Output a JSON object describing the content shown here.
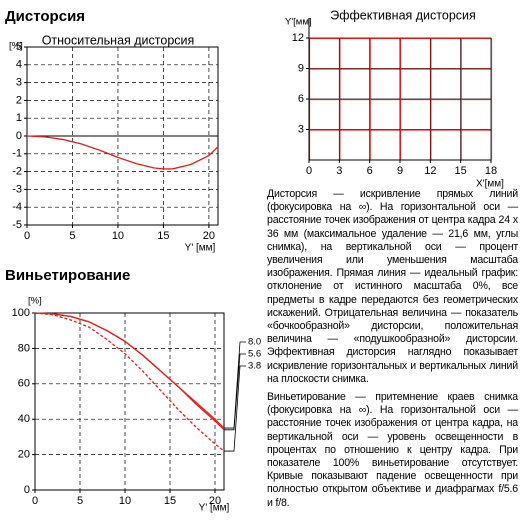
{
  "headings": [
    "Дисторсия",
    "Виньетирование"
  ],
  "chart_data": [
    {
      "type": "line",
      "title": "Относительная дисторсия",
      "y_label": "[%]",
      "x_label": "Y' [мм]",
      "x": [
        0,
        2,
        4,
        6,
        8,
        10,
        12,
        14,
        15,
        16,
        18,
        20,
        21
      ],
      "values": [
        0,
        -0.05,
        -0.2,
        -0.45,
        -0.8,
        -1.2,
        -1.55,
        -1.8,
        -1.85,
        -1.85,
        -1.6,
        -1.1,
        -0.6
      ],
      "color": "#e02020",
      "xlim": [
        0,
        21
      ],
      "ylim": [
        -5,
        5
      ],
      "xticks": [
        0,
        5,
        10,
        15,
        20
      ],
      "yticks": [
        -5,
        -4,
        -3,
        -2,
        -1,
        0,
        1,
        2,
        3,
        4,
        5
      ],
      "grid": true
    },
    {
      "type": "distortion-grid",
      "title": "Эффективная дисторсия",
      "y_label": "Y'[мм]",
      "x_label": "X'[мм]",
      "color": "#e02020",
      "xlim": [
        0,
        18
      ],
      "ylim": [
        0,
        12
      ],
      "xticks": [
        0,
        3,
        6,
        9,
        12,
        15,
        18
      ],
      "yticks": [
        3,
        6,
        9,
        12
      ],
      "grid": true
    },
    {
      "type": "line",
      "y_label": "[%]",
      "x_label": "Y' [мм]",
      "x": [
        0,
        2,
        4,
        6,
        8,
        10,
        12,
        14,
        16,
        18,
        20,
        21
      ],
      "series": [
        {
          "name": "8.0",
          "color": "#e02020",
          "style": "solid",
          "values": [
            100,
            99.5,
            98,
            95,
            90,
            84,
            76,
            67,
            58,
            49,
            40,
            35
          ]
        },
        {
          "name": "5.6",
          "color": "#e02020",
          "style": "solid",
          "values": [
            100,
            99.5,
            98,
            95,
            90,
            84,
            76,
            67,
            58,
            48,
            39,
            34
          ]
        },
        {
          "name": "3.8",
          "color": "#e02020",
          "style": "dashed",
          "values": [
            100,
            99,
            96,
            92,
            85,
            77,
            67,
            56,
            45,
            35,
            26,
            22
          ]
        }
      ],
      "xlim": [
        0,
        21
      ],
      "ylim": [
        0,
        100
      ],
      "xticks": [
        0,
        5,
        10,
        15,
        20
      ],
      "yticks": [
        0,
        20,
        40,
        60,
        80,
        100
      ],
      "grid": true
    }
  ],
  "text": {
    "distortion": "Дисторсия — искривление прямых линий (фокусировка на ∞). На горизонтальной оси — расстояние точек изображения от центра кадра 24 x 36 мм (максимальное удаление — 21,6 мм, углы снимка), на вертикальной оси — процент увеличения или уменьшения масштаба изображения. Прямая линия — идеальный график: отклонение от истинного масштаба 0%, все предметы в кадре передаются без геометрических искажений. Отрицательная величина — показатель «бочкообразной» дисторсии, положительная величина — «подушкообразной» дисторсии. Эффективная дисторсия наглядно показывает искривление горизонтальных и вертикальных линий на плоскости снимка.",
    "vignetting": "Виньетирование — притемнение краев снимка (фокусировка на ∞). На горизонтальной оси — расстояние точек изображения от центра кадра, на вертикальной оси — уровень освещенности в процентах по отношению к центру кадра. При показателе 100% виньетирование отсутствует. Кривые показывают падение освещенности при полностью открытом объективе и диафрагмах f/5.6 и f/8."
  }
}
